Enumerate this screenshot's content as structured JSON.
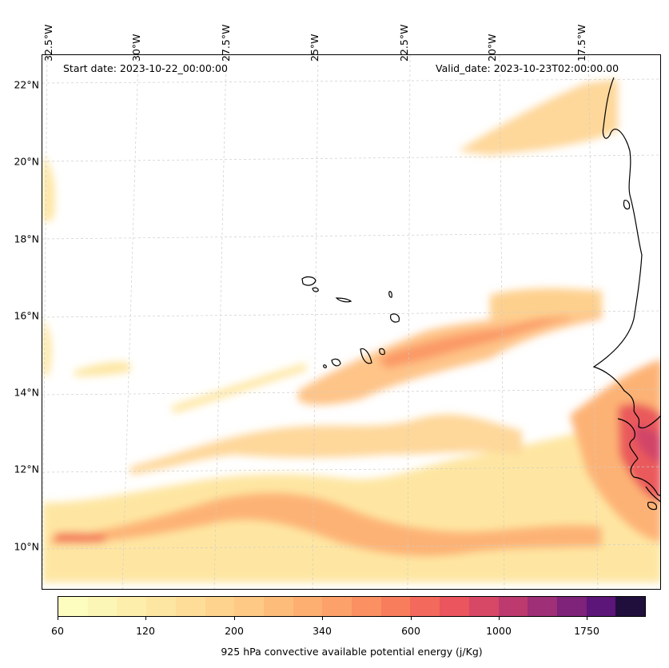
{
  "map": {
    "start_date": "Start date: 2023-10-22_00:00:00",
    "valid_date": "Valid_date: 2023-10-23T02:00:00.00",
    "lat_labels": [
      "22°N",
      "20°N",
      "18°N",
      "16°N",
      "14°N",
      "12°N",
      "10°N"
    ],
    "lon_labels": [
      "32.5°W",
      "30°W",
      "27.5°W",
      "25°W",
      "22.5°W",
      "20°W",
      "17.5°W"
    ],
    "coastline_color": "#000000",
    "gridline_color": "#cccccc"
  },
  "colorbar": {
    "label": "925 hPa convective available potential energy (j/Kg)",
    "tick_labels": [
      "60",
      "120",
      "200",
      "340",
      "600",
      "1000",
      "1750"
    ],
    "colors": [
      "#fcfdbf",
      "#fcf6b6",
      "#fdeeac",
      "#fde6a2",
      "#fedd98",
      "#fed38e",
      "#fec885",
      "#febc7b",
      "#fdaf72",
      "#fca16a",
      "#fb9063",
      "#f87d5d",
      "#f3695b",
      "#ea555e",
      "#d64866",
      "#bc3a6e",
      "#9f2f76",
      "#7e227a",
      "#5c1579",
      "#200f3d"
    ]
  }
}
